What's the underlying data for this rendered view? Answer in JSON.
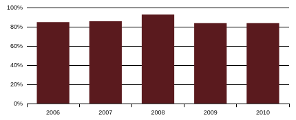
{
  "chart_data": {
    "type": "bar",
    "categories": [
      "2006",
      "2007",
      "2008",
      "2009",
      "2010"
    ],
    "values": [
      85,
      86,
      93,
      84,
      84
    ],
    "color": "#5a1a1e",
    "ylim": [
      0,
      100
    ],
    "yticks": [
      {
        "value": 0,
        "label": "0%"
      },
      {
        "value": 20,
        "label": "20%"
      },
      {
        "value": 40,
        "label": "40%"
      },
      {
        "value": 60,
        "label": "60%"
      },
      {
        "value": 80,
        "label": "80%"
      },
      {
        "value": 100,
        "label": "100%"
      }
    ],
    "grid": true
  }
}
